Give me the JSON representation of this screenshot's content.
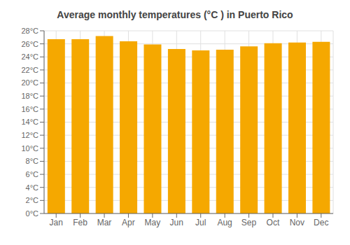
{
  "chart_data": {
    "type": "bar",
    "title": "Average monthly temperatures (°C ) in Puerto Rico",
    "categories": [
      "Jan",
      "Feb",
      "Mar",
      "Apr",
      "May",
      "Jun",
      "Jul",
      "Aug",
      "Sep",
      "Oct",
      "Nov",
      "Dec"
    ],
    "values": [
      26.7,
      26.7,
      27.2,
      26.4,
      25.9,
      25.2,
      25.0,
      25.1,
      25.6,
      26.1,
      26.2,
      26.3
    ],
    "color": "#F5A800",
    "ylim": [
      0,
      28
    ],
    "yticks": [
      {
        "value": 0,
        "label": "0°C"
      },
      {
        "value": 2,
        "label": "2°C"
      },
      {
        "value": 4,
        "label": "4°C"
      },
      {
        "value": 6,
        "label": "6°C"
      },
      {
        "value": 8,
        "label": "8°C"
      },
      {
        "value": 10,
        "label": "10°C"
      },
      {
        "value": 12,
        "label": "12°C"
      },
      {
        "value": 14,
        "label": "14°C"
      },
      {
        "value": 16,
        "label": "16°C"
      },
      {
        "value": 18,
        "label": "18°C"
      },
      {
        "value": 20,
        "label": "20°C"
      },
      {
        "value": 22,
        "label": "22°C"
      },
      {
        "value": 24,
        "label": "24°C"
      },
      {
        "value": 26,
        "label": "26°C"
      },
      {
        "value": 28,
        "label": "28°C"
      }
    ],
    "grid": true
  }
}
